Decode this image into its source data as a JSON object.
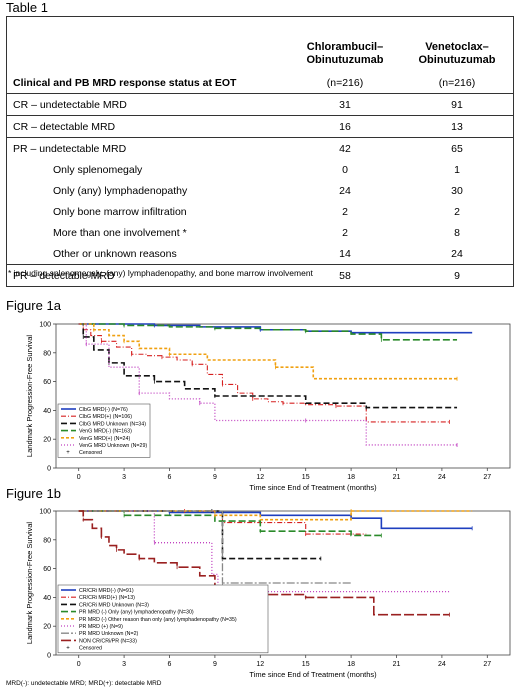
{
  "table": {
    "title": "Table 1",
    "col1": [
      "Chlorambucil–",
      "Obinutuzumab"
    ],
    "col2": [
      "Venetoclax–",
      "Obinutuzumab"
    ],
    "sub_label": "Clinical and PB MRD response status at EOT",
    "n1": "(n=216)",
    "n2": "(n=216)",
    "rows": [
      {
        "label": "CR – undetectable MRD",
        "v1": "31",
        "v2": "91",
        "indent": false,
        "top": true
      },
      {
        "label": "CR – detectable MRD",
        "v1": "16",
        "v2": "13",
        "indent": false,
        "top": true
      },
      {
        "label": "PR – undetectable MRD",
        "v1": "42",
        "v2": "65",
        "indent": false,
        "top": true
      },
      {
        "label": "Only splenomegaly",
        "v1": "0",
        "v2": "1",
        "indent": true,
        "top": false
      },
      {
        "label": "Only (any) lymphadenopathy",
        "v1": "24",
        "v2": "30",
        "indent": true,
        "top": false
      },
      {
        "label": "Only bone marrow infiltration",
        "v1": "2",
        "v2": "2",
        "indent": true,
        "top": false
      },
      {
        "label": "More than one involvement *",
        "v1": "2",
        "v2": "8",
        "indent": true,
        "top": false
      },
      {
        "label": "Other or unknown reasons",
        "v1": "14",
        "v2": "24",
        "indent": true,
        "top": false
      },
      {
        "label": "PR – detectable MRD",
        "v1": "58",
        "v2": "9",
        "indent": false,
        "top": true
      }
    ],
    "footnote": "* including splenomegaly, (any) lymphadenopathy, and bone marrow involvement"
  },
  "figure_1a_title": "Figure 1a",
  "figure_1b_title": "Figure 1b",
  "bottom_note": "MRD(-): undetectable MRD; MRD(+): detectable MRD",
  "chart_data": [
    {
      "type": "line",
      "step": true,
      "title": "",
      "xlabel": "Time since End of Treatment (months)",
      "ylabel": "Landmark Progression-Free Survival",
      "xlim": [
        -1.5,
        28.5
      ],
      "ylim": [
        0,
        100
      ],
      "xticks": [
        0,
        3,
        6,
        9,
        12,
        15,
        18,
        21,
        24,
        27
      ],
      "yticks": [
        0,
        20,
        40,
        60,
        80,
        100
      ],
      "legend_position": "bottom-left",
      "censored_label": "Censored",
      "series": [
        {
          "name": "ClbG MRD(-) (N=76)",
          "color": "#1f3fbf",
          "dash": "",
          "width": 1.6,
          "x": [
            0,
            5,
            8,
            12,
            15,
            18,
            26
          ],
          "y": [
            100,
            99,
            98,
            96,
            95,
            94,
            94
          ]
        },
        {
          "name": "ClbG MRD(+) (N=106)",
          "color": "#d62020",
          "dash": "5,2,1,2",
          "width": 1.1,
          "x": [
            0,
            0.3,
            0.8,
            1.5,
            2.5,
            3.5,
            4.5,
            5.5,
            6.5,
            7.5,
            8.5,
            9.5,
            10.5,
            11.5,
            12.5,
            13.5,
            15,
            17,
            19,
            24.5
          ],
          "y": [
            100,
            96,
            92,
            88,
            84,
            79,
            78,
            77,
            75,
            72,
            65,
            58,
            52,
            48,
            46,
            45,
            44,
            43,
            32,
            32
          ]
        },
        {
          "name": "ClbG MRD Unknown (N=34)",
          "color": "#111111",
          "dash": "6,3",
          "width": 1.6,
          "x": [
            0,
            0.3,
            1,
            2,
            3,
            5,
            7,
            9,
            15,
            19,
            25
          ],
          "y": [
            100,
            91,
            82,
            73,
            64,
            60,
            55,
            50,
            45,
            42,
            42
          ]
        },
        {
          "name": "VenG MRD(-) (N=163)",
          "color": "#2a8a2a",
          "dash": "7,3",
          "width": 1.6,
          "x": [
            0,
            3,
            6,
            9,
            12,
            15,
            18,
            20,
            25
          ],
          "y": [
            100,
            99,
            98,
            97,
            96,
            95,
            93,
            89,
            89
          ]
        },
        {
          "name": "VenG MRD(+) (N=24)",
          "color": "#f0a010",
          "dash": "3,2",
          "width": 1.6,
          "x": [
            0,
            1,
            2,
            3,
            4,
            6,
            8.5,
            13,
            15.5,
            25
          ],
          "y": [
            100,
            96,
            92,
            88,
            83,
            79,
            75,
            70,
            62,
            62
          ]
        },
        {
          "name": "VenG MRD Unknown (N=29)",
          "color": "#c040c0",
          "dash": "1,2",
          "width": 1.3,
          "x": [
            0,
            0.5,
            2,
            4,
            6,
            8,
            9,
            15,
            19,
            25
          ],
          "y": [
            100,
            86,
            70,
            52,
            48,
            45,
            33,
            33,
            16,
            16
          ]
        }
      ]
    },
    {
      "type": "line",
      "step": true,
      "title": "",
      "xlabel": "Time since End of Treatment (months)",
      "ylabel": "Landmark Progression-Free Survival",
      "xlim": [
        -1.5,
        28.5
      ],
      "ylim": [
        0,
        100
      ],
      "xticks": [
        0,
        3,
        6,
        9,
        12,
        15,
        18,
        21,
        24,
        27
      ],
      "yticks": [
        0,
        20,
        40,
        60,
        80,
        100
      ],
      "legend_position": "bottom-left",
      "censored_label": "Censored",
      "series": [
        {
          "name": "CR/CRi MRD(-) (N=91)",
          "color": "#1f3fbf",
          "dash": "",
          "width": 1.6,
          "x": [
            0,
            6,
            12,
            18,
            20,
            26
          ],
          "y": [
            100,
            99,
            97,
            95,
            88,
            88
          ]
        },
        {
          "name": "CR/CRi MRD(+) (N=13)",
          "color": "#d62020",
          "dash": "5,2,1,2",
          "width": 1.1,
          "x": [
            0,
            7,
            9.5,
            15,
            19
          ],
          "y": [
            100,
            100,
            92,
            84,
            84
          ]
        },
        {
          "name": "CR/CRi MRD Unknown (N=3)",
          "color": "#111111",
          "dash": "6,3",
          "width": 1.6,
          "x": [
            0,
            8.8,
            9.5,
            16
          ],
          "y": [
            100,
            100,
            67,
            67
          ]
        },
        {
          "name": "PR MRD (-) Only (any) lymphadenopathy (N=30)",
          "color": "#2a8a2a",
          "dash": "7,3",
          "width": 1.6,
          "x": [
            0,
            3,
            9,
            12,
            18,
            20
          ],
          "y": [
            100,
            97,
            93,
            86,
            83,
            83
          ]
        },
        {
          "name": "PR MRD (-) Other reason than only (any) lymphadenopathy (N=35)",
          "color": "#f0a010",
          "dash": "3,2",
          "width": 1.6,
          "x": [
            0,
            9,
            12,
            18,
            26
          ],
          "y": [
            100,
            97,
            94,
            100,
            100
          ]
        },
        {
          "name": "PR MRD (+) (N=9)",
          "color": "#c040c0",
          "dash": "1,2",
          "width": 1.3,
          "x": [
            0,
            5,
            8.8,
            9.2,
            24.5
          ],
          "y": [
            100,
            78,
            56,
            44,
            44
          ]
        },
        {
          "name": "PR MRD Unknown (N=2)",
          "color": "#888888",
          "dash": "8,2,2,2",
          "width": 1.3,
          "x": [
            0,
            9.5,
            18
          ],
          "y": [
            100,
            50,
            50
          ]
        },
        {
          "name": "NON CR/CRi/PR (N=33)",
          "color": "#9a2020",
          "dash": "10,3",
          "width": 1.6,
          "x": [
            0,
            0.3,
            0.9,
            1.5,
            2,
            2.5,
            3,
            4,
            5,
            6.5,
            8,
            9,
            10,
            15,
            19.5,
            24.5
          ],
          "y": [
            100,
            94,
            88,
            82,
            76,
            73,
            70,
            67,
            64,
            61,
            55,
            45,
            42,
            40,
            28,
            28
          ]
        }
      ]
    }
  ]
}
